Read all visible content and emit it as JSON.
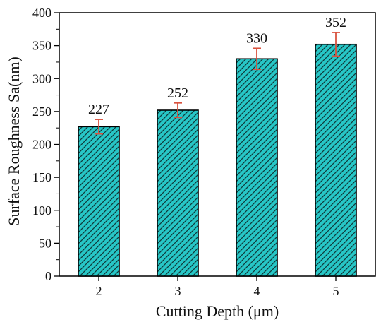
{
  "chart_data": {
    "type": "bar",
    "categories": [
      "2",
      "3",
      "4",
      "5"
    ],
    "values": [
      227,
      252,
      330,
      352
    ],
    "error_bars": [
      11,
      11,
      16,
      18
    ],
    "data_labels": [
      "227",
      "252",
      "330",
      "352"
    ],
    "title": "",
    "xlabel": "Cutting Depth (μm)",
    "ylabel": "Surface Roughness Sa(nm)",
    "ylim": [
      0,
      400
    ],
    "yticks": [
      0,
      50,
      100,
      150,
      200,
      250,
      300,
      350,
      400
    ],
    "ytick_labels": [
      "0",
      "50",
      "100",
      "150",
      "200",
      "250",
      "300",
      "350",
      "400"
    ],
    "grid": false,
    "legend": "none",
    "colors": {
      "bar_fill": "#27c6c6",
      "bar_hatch": "#0f3b3b",
      "bar_edge": "#000000",
      "error_bar": "#d9523f"
    }
  }
}
